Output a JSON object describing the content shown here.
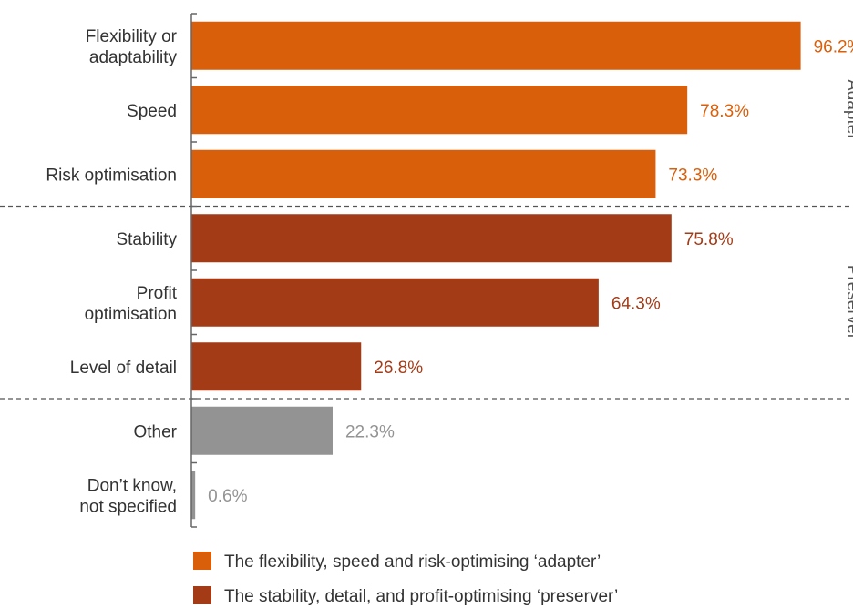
{
  "chart_data": {
    "type": "bar",
    "orientation": "horizontal",
    "categories": [
      [
        "Flexibility or",
        "adaptability"
      ],
      [
        "Speed"
      ],
      [
        "Risk optimisation"
      ],
      [
        "Stability"
      ],
      [
        "Profit",
        "optimisation"
      ],
      [
        "Level of detail"
      ],
      [
        "Other"
      ],
      [
        "Don’t know,",
        "not specified"
      ]
    ],
    "values": [
      96.2,
      78.3,
      73.3,
      75.8,
      64.3,
      26.8,
      22.3,
      0.6
    ],
    "value_labels": [
      "96.2%",
      "78.3%",
      "73.3%",
      "75.8%",
      "64.3%",
      "26.8%",
      "22.3%",
      "0.6%"
    ],
    "groups": [
      "adapter",
      "adapter",
      "adapter",
      "preserver",
      "preserver",
      "preserver",
      "other",
      "other"
    ],
    "group_labels": {
      "adapter": "‘Adapter’",
      "preserver": "‘Preserver’"
    },
    "xlim": [
      0,
      100
    ],
    "grid": false,
    "legend_position": "bottom",
    "legend": [
      {
        "group": "adapter",
        "label": "The flexibility, speed and risk-optimising ‘adapter’"
      },
      {
        "group": "preserver",
        "label": "The stability, detail, and profit-optimising ‘preserver’"
      }
    ],
    "colors": {
      "adapter": "#d95f0a",
      "preserver": "#a33b17",
      "other": "#939393",
      "axis": "#666666",
      "divider": "#555555"
    }
  }
}
